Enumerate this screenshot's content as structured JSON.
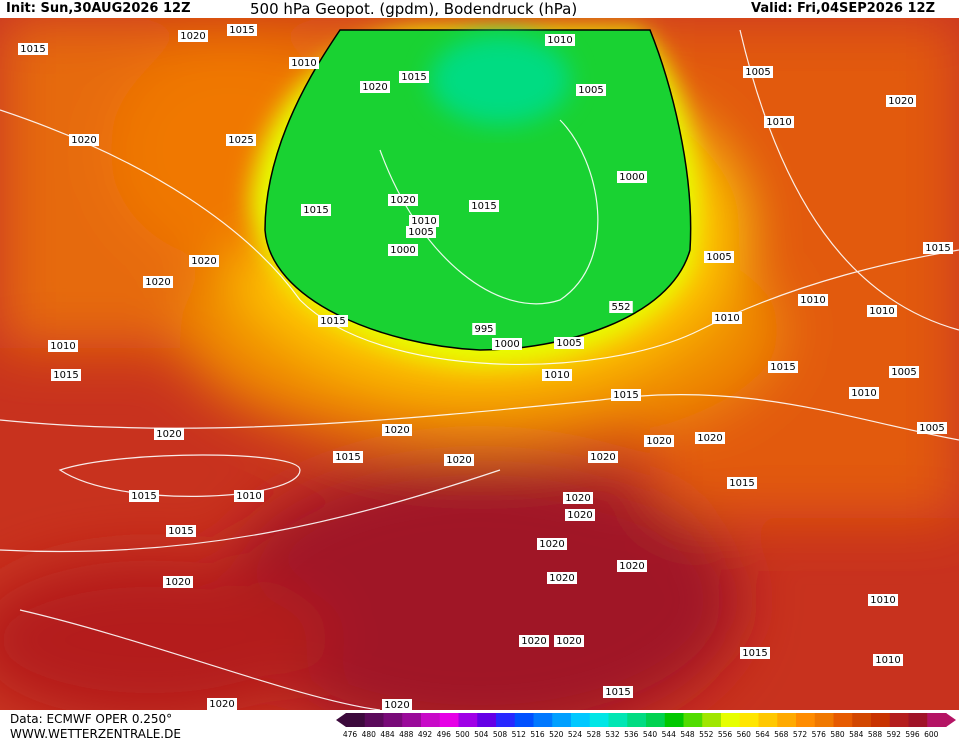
{
  "header": {
    "init": "Init: Sun,30AUG2026 12Z",
    "title": "500 hPa Geopot. (gpdm), Bodendruck (hPa)",
    "valid": "Valid: Fri,04SEP2026 12Z"
  },
  "footer": {
    "source": "Data: ECMWF OPER 0.250°",
    "url": "WWW.WETTERZENTRALE.DE"
  },
  "isobar_labels": [
    "1015",
    "1020",
    "1015",
    "1010",
    "1020",
    "1015",
    "1010",
    "1005",
    "1005",
    "1020",
    "1010",
    "1020",
    "1025",
    "1015",
    "1020",
    "1015",
    "1010",
    "1005",
    "1000",
    "1000",
    "1020",
    "1020",
    "1005",
    "1015",
    "995",
    "1000",
    "1005",
    "1010",
    "1010",
    "1010",
    "1010",
    "1015",
    "1015",
    "1005",
    "1010",
    "1015",
    "1010",
    "1020",
    "1020",
    "1020",
    "1020",
    "1005",
    "1015",
    "1020",
    "1020",
    "1015",
    "1015",
    "1010",
    "1015",
    "1020",
    "1020",
    "1020",
    "1020",
    "1020",
    "1020",
    "1010",
    "1020",
    "1020",
    "1015",
    "1010",
    "1015",
    "1020",
    "1020",
    "1015",
    "552"
  ],
  "legend": {
    "labels": [
      "476",
      "480",
      "484",
      "488",
      "492",
      "496",
      "500",
      "504",
      "508",
      "512",
      "516",
      "520",
      "524",
      "528",
      "532",
      "536",
      "540",
      "544",
      "548",
      "552",
      "556",
      "560",
      "564",
      "568",
      "572",
      "576",
      "580",
      "584",
      "588",
      "592",
      "596",
      "600"
    ],
    "colors": [
      "#3c0a3c",
      "#5a0a5a",
      "#780a78",
      "#9a0a9a",
      "#c80ac8",
      "#e600e6",
      "#a000e6",
      "#6400e6",
      "#2828ff",
      "#0050ff",
      "#0078ff",
      "#00a0ff",
      "#00c8ff",
      "#00e6e6",
      "#00e6b4",
      "#00dc82",
      "#00d250",
      "#00c800",
      "#50dc00",
      "#a0e600",
      "#e6ff00",
      "#ffe600",
      "#ffc800",
      "#ffaa00",
      "#ff8c00",
      "#f07800",
      "#e65a00",
      "#d24600",
      "#c83200",
      "#b41e1e",
      "#a01428",
      "#b41464"
    ]
  }
}
